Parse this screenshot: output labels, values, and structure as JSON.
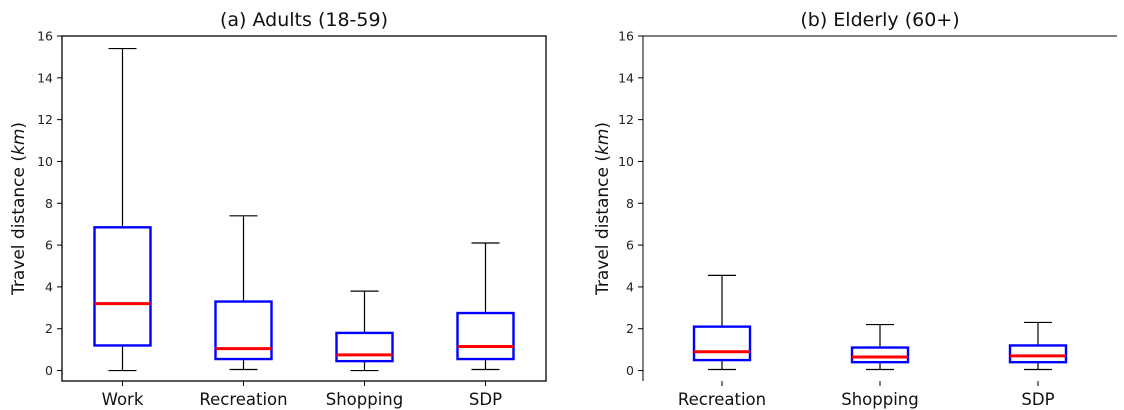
{
  "colors": {
    "box": "#0000ff",
    "median": "#ff0000",
    "whisker": "#000000"
  },
  "chart_data": [
    {
      "type": "box",
      "title": "(a) Adults (18-59)",
      "ylabel_main": "Travel distance (",
      "ylabel_unit": "km",
      "ylabel_end": ")",
      "ylim": [
        -0.5,
        16
      ],
      "yticks": [
        "0",
        "2",
        "4",
        "6",
        "8",
        "10",
        "12",
        "14",
        "16"
      ],
      "categories": [
        "Work",
        "Recreation",
        "Shopping",
        "SDP"
      ],
      "boxes": [
        {
          "whislo": 0.0,
          "q1": 1.2,
          "med": 3.2,
          "q3": 6.85,
          "whishi": 15.4
        },
        {
          "whislo": 0.05,
          "q1": 0.55,
          "med": 1.05,
          "q3": 3.3,
          "whishi": 7.4
        },
        {
          "whislo": 0.0,
          "q1": 0.45,
          "med": 0.75,
          "q3": 1.8,
          "whishi": 3.8
        },
        {
          "whislo": 0.05,
          "q1": 0.55,
          "med": 1.15,
          "q3": 2.75,
          "whishi": 6.1
        }
      ]
    },
    {
      "type": "box",
      "title": "(b) Elderly (60+)",
      "ylabel_main": "Travel distance (",
      "ylabel_unit": "km",
      "ylabel_end": ")",
      "ylim": [
        -0.5,
        16
      ],
      "yticks": [
        "0",
        "2",
        "4",
        "6",
        "8",
        "10",
        "12",
        "14",
        "16"
      ],
      "categories": [
        "Recreation",
        "Shopping",
        "SDP"
      ],
      "boxes": [
        {
          "whislo": 0.05,
          "q1": 0.5,
          "med": 0.9,
          "q3": 2.1,
          "whishi": 4.55
        },
        {
          "whislo": 0.05,
          "q1": 0.4,
          "med": 0.65,
          "q3": 1.1,
          "whishi": 2.2
        },
        {
          "whislo": 0.05,
          "q1": 0.4,
          "med": 0.7,
          "q3": 1.2,
          "whishi": 2.3
        }
      ]
    }
  ]
}
